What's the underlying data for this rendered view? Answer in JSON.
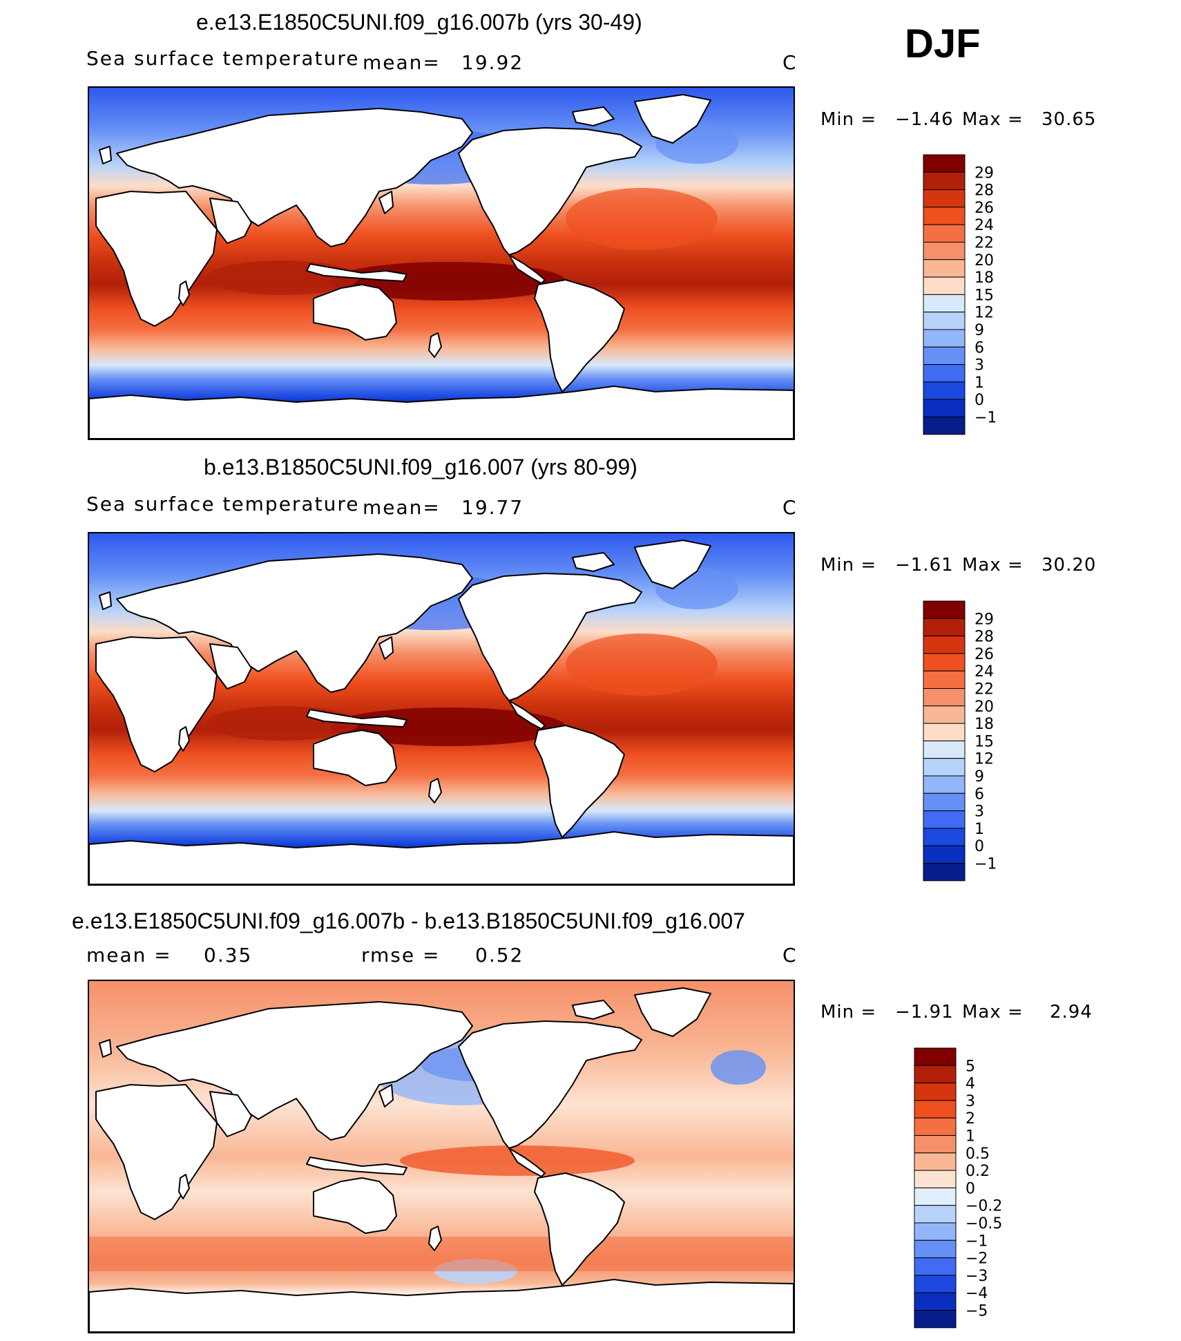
{
  "header": {
    "season": "DJF"
  },
  "panels": [
    {
      "title": "e.e13.E1850C5UNI.f09_g16.007b (yrs 30-49)",
      "variable": "Sea surface temperature",
      "stat1_label": "mean=",
      "stat1_value": "19.92",
      "units": "C",
      "min_label": "Min  =",
      "min_value": "−1.46",
      "max_label": "Max  =",
      "max_value": "30.65",
      "colorbar_labels": [
        "29",
        "28",
        "26",
        "24",
        "22",
        "20",
        "18",
        "15",
        "12",
        "9",
        "6",
        "3",
        "1",
        "0",
        "−1"
      ],
      "colorbar_colors": [
        "#800000",
        "#b2200a",
        "#d6360f",
        "#ef5020",
        "#f47043",
        "#f6906a",
        "#f9b795",
        "#fdddc8",
        "#d8e8fa",
        "#b8d3fa",
        "#92b6fa",
        "#6590f5",
        "#3f6cf2",
        "#1c49e0",
        "#0a2fbf",
        "#061d8c"
      ],
      "map_style": "absolute"
    },
    {
      "title": "b.e13.B1850C5UNI.f09_g16.007 (yrs 80-99)",
      "variable": "Sea surface temperature",
      "stat1_label": "mean=",
      "stat1_value": "19.77",
      "units": "C",
      "min_label": "Min  =",
      "min_value": "−1.61",
      "max_label": "Max  =",
      "max_value": "30.20",
      "colorbar_labels": [
        "29",
        "28",
        "26",
        "24",
        "22",
        "20",
        "18",
        "15",
        "12",
        "9",
        "6",
        "3",
        "1",
        "0",
        "−1"
      ],
      "colorbar_colors": [
        "#800000",
        "#b2200a",
        "#d6360f",
        "#ef5020",
        "#f47043",
        "#f6906a",
        "#f9b795",
        "#fdddc8",
        "#d8e8fa",
        "#b8d3fa",
        "#92b6fa",
        "#6590f5",
        "#3f6cf2",
        "#1c49e0",
        "#0a2fbf",
        "#061d8c"
      ],
      "map_style": "absolute"
    },
    {
      "title": "e.e13.E1850C5UNI.f09_g16.007b - b.e13.B1850C5UNI.f09_g16.007",
      "stat1_label": "mean =",
      "stat1_value": "0.35",
      "stat2_label": "rmse =",
      "stat2_value": "0.52",
      "units": "C",
      "min_label": "Min  =",
      "min_value": "−1.91",
      "max_label": "Max  =",
      "max_value": "2.94",
      "colorbar_labels": [
        "5",
        "4",
        "3",
        "2",
        "1",
        "0.5",
        "0.2",
        "0",
        "−0.2",
        "−0.5",
        "−1",
        "−2",
        "−3",
        "−4",
        "−5"
      ],
      "colorbar_colors": [
        "#800000",
        "#b2200a",
        "#d6360f",
        "#ef5020",
        "#f47043",
        "#f6906a",
        "#f9b795",
        "#fde3d2",
        "#e3eefc",
        "#b8d3fa",
        "#92b6fa",
        "#6590f5",
        "#3f6cf2",
        "#1c49e0",
        "#0a2fbf",
        "#061d8c"
      ],
      "map_style": "difference"
    }
  ]
}
